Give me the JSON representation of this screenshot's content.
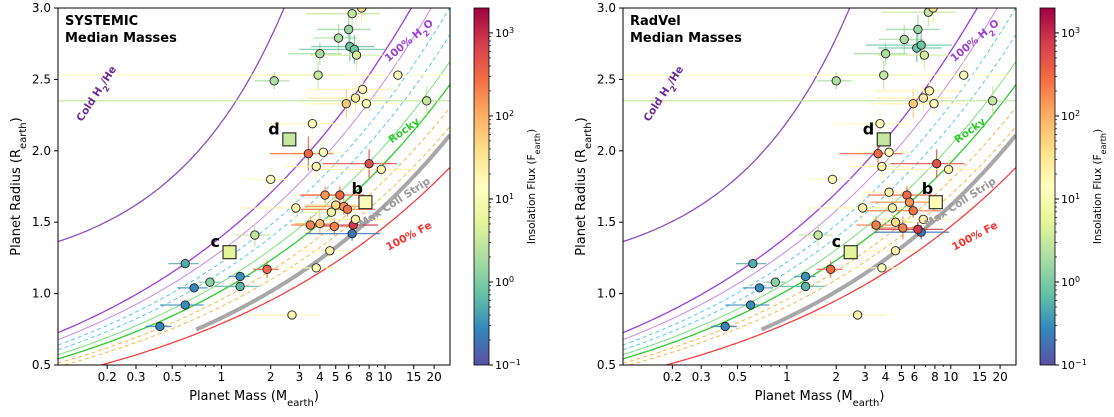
{
  "colorbar": {
    "label": "Insolation Flux (F",
    "label_sub": "earth",
    "label_end": ")",
    "tick_labels": [
      "10",
      "10",
      "10",
      "10",
      "10"
    ],
    "tick_exps": [
      "−1",
      "0",
      "1",
      "2",
      "3"
    ],
    "range_log": [
      -1,
      3.3
    ],
    "colormap": "Spectral_r"
  },
  "chart_data": [
    {
      "type": "scatter",
      "title_line1": "SYSTEMIC",
      "title_line2": "Median Masses",
      "xlabel": "Planet Mass (M",
      "xlabel_sub": "earth",
      "xlabel_end": ")",
      "ylabel": "Planet Radius (R",
      "ylabel_sub": "earth",
      "ylabel_end": ")",
      "xscale": "log",
      "xlim": [
        0.1,
        25
      ],
      "ylim": [
        0.5,
        3.0
      ],
      "x_ticks": [
        0.2,
        0.3,
        0.5,
        1,
        2,
        3,
        4,
        5,
        6,
        8,
        10,
        15,
        20
      ],
      "x_tick_labels": [
        "0.2",
        "0.3",
        "0.5",
        "1",
        "2",
        "3",
        "4",
        "5",
        "6",
        "8",
        "10",
        "15",
        "20"
      ],
      "y_ticks": [
        0.5,
        1.0,
        1.5,
        2.0,
        2.5,
        3.0
      ],
      "y_tick_labels": [
        "0.5",
        "1.0",
        "1.5",
        "2.0",
        "2.5",
        "3.0"
      ],
      "curve_labels": {
        "cold": "Cold H",
        "cold_sub": "2",
        "cold_end": "/He",
        "water": "100% H",
        "water_sub": "2",
        "water_end": "O",
        "rocky": "Rocky",
        "strip": "Max Coll Strip",
        "iron": "100% Fe"
      },
      "labeled_planets": [
        {
          "name": "b",
          "mass": 7.6,
          "radius": 1.64,
          "flux": 12
        },
        {
          "name": "c",
          "mass": 1.12,
          "radius": 1.29,
          "flux": 5
        },
        {
          "name": "d",
          "mass": 2.6,
          "radius": 2.08,
          "flux": 3
        }
      ],
      "points": [
        {
          "mass": 0.42,
          "radius": 0.77,
          "flux": 0.25,
          "xerr": 0.3,
          "yerr": 0.0
        },
        {
          "mass": 0.6,
          "radius": 0.92,
          "flux": 0.3,
          "xerr": 0.5,
          "yerr": 0.0
        },
        {
          "mass": 0.68,
          "radius": 1.04,
          "flux": 0.28,
          "xerr": 0.35,
          "yerr": 0.0
        },
        {
          "mass": 0.6,
          "radius": 1.21,
          "flux": 0.5,
          "xerr": 0.35,
          "yerr": 0.0
        },
        {
          "mass": 0.85,
          "radius": 1.08,
          "flux": 1.2,
          "xerr": 0.25,
          "yerr": 0.0
        },
        {
          "mass": 1.3,
          "radius": 1.12,
          "flux": 0.3,
          "xerr": 0.25,
          "yerr": 0.0
        },
        {
          "mass": 1.3,
          "radius": 1.05,
          "flux": 0.6,
          "xerr": 0.5,
          "yerr": 0.0
        },
        {
          "mass": 1.9,
          "radius": 1.17,
          "flux": 300,
          "xerr": 0.3,
          "yerr": 0.06
        },
        {
          "mass": 1.6,
          "radius": 1.41,
          "flux": 3,
          "xerr": 0.4,
          "yerr": 0.08
        },
        {
          "mass": 2.0,
          "radius": 1.8,
          "flux": 15,
          "xerr": 0.5,
          "yerr": 0.08
        },
        {
          "mass": 2.1,
          "radius": 2.49,
          "flux": 2,
          "xerr": 0.4,
          "yerr": 0.06
        },
        {
          "mass": 2.7,
          "radius": 0.85,
          "flux": 20,
          "xerr": 0.8,
          "yerr": 0.0
        },
        {
          "mass": 2.85,
          "radius": 1.6,
          "flux": 20,
          "xerr": 0.9,
          "yerr": 0.1
        },
        {
          "mass": 3.4,
          "radius": 1.98,
          "flux": 300,
          "xerr": 0.7,
          "yerr": 0.12
        },
        {
          "mass": 3.6,
          "radius": 2.19,
          "flux": 12,
          "xerr": 0.8,
          "yerr": 0.1
        },
        {
          "mass": 3.8,
          "radius": 1.89,
          "flux": 20,
          "xerr": 0.6,
          "yerr": 0.1
        },
        {
          "mass": 3.8,
          "radius": 1.18,
          "flux": 12,
          "xerr": 0.6,
          "yerr": 0.0
        },
        {
          "mass": 3.9,
          "radius": 2.53,
          "flux": 3,
          "xerr": 0.8,
          "yerr": 0.1
        },
        {
          "mass": 4.0,
          "radius": 2.68,
          "flux": 2,
          "xerr": 0.6,
          "yerr": 0.08
        },
        {
          "mass": 4.2,
          "radius": 1.99,
          "flux": 12,
          "xerr": 0.6,
          "yerr": 0.1
        },
        {
          "mass": 4.3,
          "radius": 1.69,
          "flux": 150,
          "xerr": 0.5,
          "yerr": 0.06
        },
        {
          "mass": 4.0,
          "radius": 1.49,
          "flux": 80,
          "xerr": 0.5,
          "yerr": 0.08
        },
        {
          "mass": 3.5,
          "radius": 1.48,
          "flux": 200,
          "xerr": 0.4,
          "yerr": 0.06
        },
        {
          "mass": 4.6,
          "radius": 1.3,
          "flux": 20,
          "xerr": 0.6,
          "yerr": 0.05
        },
        {
          "mass": 4.7,
          "radius": 1.57,
          "flux": 8,
          "xerr": 0.6,
          "yerr": 0.1
        },
        {
          "mass": 4.9,
          "radius": 1.47,
          "flux": 200,
          "xerr": 0.5,
          "yerr": 0.06
        },
        {
          "mass": 5.0,
          "radius": 1.62,
          "flux": 40,
          "xerr": 0.6,
          "yerr": 0.08
        },
        {
          "mass": 5.3,
          "radius": 1.69,
          "flux": 300,
          "xerr": 0.7,
          "yerr": 0.06
        },
        {
          "mass": 5.6,
          "radius": 1.61,
          "flux": 150,
          "xerr": 0.7,
          "yerr": 0.06
        },
        {
          "mass": 5.9,
          "radius": 1.59,
          "flux": 250,
          "xerr": 0.8,
          "yerr": 0.05
        },
        {
          "mass": 6.3,
          "radius": 1.42,
          "flux": 0.2,
          "xerr": 0.8,
          "yerr": 0.05
        },
        {
          "mass": 6.4,
          "radius": 1.48,
          "flux": 800,
          "xerr": 0.7,
          "yerr": 0.05
        },
        {
          "mass": 6.6,
          "radius": 1.52,
          "flux": 20,
          "xerr": 0.8,
          "yerr": 0.08
        },
        {
          "mass": 5.2,
          "radius": 2.79,
          "flux": 2,
          "xerr": 0.5,
          "yerr": 0.1
        },
        {
          "mass": 6.0,
          "radius": 2.85,
          "flux": 1.5,
          "xerr": 0.6,
          "yerr": 0.1
        },
        {
          "mass": 6.1,
          "radius": 2.73,
          "flux": 0.8,
          "xerr": 0.7,
          "yerr": 0.1
        },
        {
          "mass": 6.3,
          "radius": 2.96,
          "flux": 3,
          "xerr": 0.8,
          "yerr": 0.1
        },
        {
          "mass": 6.5,
          "radius": 2.71,
          "flux": 0.8,
          "xerr": 0.9,
          "yerr": 0.1
        },
        {
          "mass": 6.7,
          "radius": 2.67,
          "flux": 4,
          "xerr": 0.8,
          "yerr": 0.1
        },
        {
          "mass": 7.2,
          "radius": 3.0,
          "flux": 30,
          "xerr": 0.9,
          "yerr": 0.1
        },
        {
          "mass": 5.8,
          "radius": 2.33,
          "flux": 60,
          "xerr": 0.6,
          "yerr": 0.1
        },
        {
          "mass": 6.6,
          "radius": 2.37,
          "flux": 25,
          "xerr": 0.8,
          "yerr": 0.1
        },
        {
          "mass": 7.3,
          "radius": 2.43,
          "flux": 20,
          "xerr": 0.9,
          "yerr": 0.1
        },
        {
          "mass": 7.7,
          "radius": 2.33,
          "flux": 15,
          "xerr": 1.0,
          "yerr": 0.1
        },
        {
          "mass": 8.0,
          "radius": 1.91,
          "flux": 500,
          "xerr": 0.8,
          "yerr": 0.1
        },
        {
          "mass": 9.5,
          "radius": 1.87,
          "flux": 20,
          "xerr": 1.0,
          "yerr": 0.1
        },
        {
          "mass": 12.0,
          "radius": 2.53,
          "flux": 15,
          "xerr": 2.0,
          "yerr": 0.1
        },
        {
          "mass": 18.0,
          "radius": 2.35,
          "flux": 3,
          "xerr": 3.0,
          "yerr": 0.1
        }
      ]
    },
    {
      "type": "scatter",
      "title_line1": "RadVel",
      "title_line2": "Median Masses",
      "xlabel": "Planet Mass (M",
      "xlabel_sub": "earth",
      "xlabel_end": ")",
      "ylabel": "Planet Radius (R",
      "ylabel_sub": "earth",
      "ylabel_end": ")",
      "xscale": "log",
      "xlim": [
        0.1,
        25
      ],
      "ylim": [
        0.5,
        3.0
      ],
      "x_ticks": [
        0.2,
        0.3,
        0.5,
        1,
        2,
        3,
        4,
        5,
        6,
        8,
        10,
        15,
        20
      ],
      "x_tick_labels": [
        "0.2",
        "0.3",
        "0.5",
        "1",
        "2",
        "3",
        "4",
        "5",
        "6",
        "8",
        "10",
        "15",
        "20"
      ],
      "y_ticks": [
        0.5,
        1.0,
        1.5,
        2.0,
        2.5,
        3.0
      ],
      "y_tick_labels": [
        "0.5",
        "1.0",
        "1.5",
        "2.0",
        "2.5",
        "3.0"
      ],
      "curve_labels": {
        "cold": "Cold H",
        "cold_sub": "2",
        "cold_end": "/He",
        "water": "100% H",
        "water_sub": "2",
        "water_end": "O",
        "rocky": "Rocky",
        "strip": "Max Coll Strip",
        "iron": "100% Fe"
      },
      "labeled_planets": [
        {
          "name": "b",
          "mass": 8.1,
          "radius": 1.64,
          "flux": 12
        },
        {
          "name": "c",
          "mass": 2.45,
          "radius": 1.29,
          "flux": 5
        },
        {
          "name": "d",
          "mass": 3.9,
          "radius": 2.08,
          "flux": 3
        }
      ],
      "points": [
        {
          "mass": 0.42,
          "radius": 0.77,
          "flux": 0.25,
          "xerr": 0.3,
          "yerr": 0.0
        },
        {
          "mass": 0.6,
          "radius": 0.92,
          "flux": 0.3,
          "xerr": 0.5,
          "yerr": 0.0
        },
        {
          "mass": 0.68,
          "radius": 1.04,
          "flux": 0.28,
          "xerr": 0.35,
          "yerr": 0.0
        },
        {
          "mass": 0.62,
          "radius": 1.21,
          "flux": 0.5,
          "xerr": 0.35,
          "yerr": 0.0
        },
        {
          "mass": 0.85,
          "radius": 1.08,
          "flux": 1.2,
          "xerr": 0.25,
          "yerr": 0.0
        },
        {
          "mass": 1.3,
          "radius": 1.12,
          "flux": 0.3,
          "xerr": 0.25,
          "yerr": 0.0
        },
        {
          "mass": 1.3,
          "radius": 1.05,
          "flux": 0.6,
          "xerr": 0.5,
          "yerr": 0.0
        },
        {
          "mass": 1.85,
          "radius": 1.17,
          "flux": 300,
          "xerr": 0.3,
          "yerr": 0.06
        },
        {
          "mass": 1.55,
          "radius": 1.41,
          "flux": 3,
          "xerr": 0.4,
          "yerr": 0.08
        },
        {
          "mass": 1.9,
          "radius": 1.8,
          "flux": 15,
          "xerr": 0.5,
          "yerr": 0.08
        },
        {
          "mass": 2.0,
          "radius": 2.49,
          "flux": 2,
          "xerr": 0.4,
          "yerr": 0.06
        },
        {
          "mass": 2.7,
          "radius": 0.85,
          "flux": 20,
          "xerr": 0.8,
          "yerr": 0.0
        },
        {
          "mass": 2.9,
          "radius": 1.6,
          "flux": 20,
          "xerr": 0.9,
          "yerr": 0.1
        },
        {
          "mass": 3.6,
          "radius": 1.98,
          "flux": 300,
          "xerr": 0.7,
          "yerr": 0.12
        },
        {
          "mass": 3.7,
          "radius": 2.19,
          "flux": 12,
          "xerr": 0.8,
          "yerr": 0.1
        },
        {
          "mass": 3.8,
          "radius": 1.89,
          "flux": 20,
          "xerr": 0.6,
          "yerr": 0.1
        },
        {
          "mass": 3.8,
          "radius": 1.18,
          "flux": 12,
          "xerr": 0.6,
          "yerr": 0.0
        },
        {
          "mass": 3.9,
          "radius": 2.53,
          "flux": 3,
          "xerr": 0.8,
          "yerr": 0.1
        },
        {
          "mass": 4.0,
          "radius": 2.68,
          "flux": 2,
          "xerr": 0.6,
          "yerr": 0.08
        },
        {
          "mass": 4.2,
          "radius": 1.99,
          "flux": 12,
          "xerr": 0.6,
          "yerr": 0.1
        },
        {
          "mass": 4.2,
          "radius": 1.71,
          "flux": 20,
          "xerr": 0.5,
          "yerr": 0.06
        },
        {
          "mass": 3.5,
          "radius": 1.48,
          "flux": 200,
          "xerr": 0.4,
          "yerr": 0.06
        },
        {
          "mass": 4.6,
          "radius": 1.3,
          "flux": 20,
          "xerr": 0.6,
          "yerr": 0.05
        },
        {
          "mass": 4.4,
          "radius": 1.6,
          "flux": 8,
          "xerr": 0.6,
          "yerr": 0.1
        },
        {
          "mass": 4.6,
          "radius": 1.5,
          "flux": 40,
          "xerr": 0.5,
          "yerr": 0.06
        },
        {
          "mass": 5.1,
          "radius": 1.46,
          "flux": 200,
          "xerr": 0.6,
          "yerr": 0.08
        },
        {
          "mass": 5.4,
          "radius": 1.69,
          "flux": 300,
          "xerr": 0.7,
          "yerr": 0.06
        },
        {
          "mass": 5.6,
          "radius": 1.64,
          "flux": 150,
          "xerr": 0.7,
          "yerr": 0.06
        },
        {
          "mass": 5.9,
          "radius": 1.58,
          "flux": 250,
          "xerr": 0.8,
          "yerr": 0.05
        },
        {
          "mass": 6.6,
          "radius": 1.43,
          "flux": 0.2,
          "xerr": 0.8,
          "yerr": 0.05
        },
        {
          "mass": 6.3,
          "radius": 1.45,
          "flux": 800,
          "xerr": 0.7,
          "yerr": 0.05
        },
        {
          "mass": 6.8,
          "radius": 1.52,
          "flux": 20,
          "xerr": 0.8,
          "yerr": 0.08
        },
        {
          "mass": 5.2,
          "radius": 2.78,
          "flux": 2,
          "xerr": 0.5,
          "yerr": 0.1
        },
        {
          "mass": 6.3,
          "radius": 2.85,
          "flux": 1.5,
          "xerr": 0.6,
          "yerr": 0.1
        },
        {
          "mass": 6.2,
          "radius": 2.72,
          "flux": 0.8,
          "xerr": 0.7,
          "yerr": 0.1
        },
        {
          "mass": 7.3,
          "radius": 2.97,
          "flux": 3,
          "xerr": 0.8,
          "yerr": 0.1
        },
        {
          "mass": 6.6,
          "radius": 2.74,
          "flux": 0.8,
          "xerr": 0.9,
          "yerr": 0.1
        },
        {
          "mass": 6.9,
          "radius": 2.67,
          "flux": 4,
          "xerr": 0.8,
          "yerr": 0.1
        },
        {
          "mass": 7.8,
          "radius": 3.0,
          "flux": 30,
          "xerr": 0.9,
          "yerr": 0.1
        },
        {
          "mass": 5.9,
          "radius": 2.33,
          "flux": 60,
          "xerr": 0.6,
          "yerr": 0.1
        },
        {
          "mass": 6.8,
          "radius": 2.37,
          "flux": 25,
          "xerr": 0.8,
          "yerr": 0.1
        },
        {
          "mass": 7.4,
          "radius": 2.42,
          "flux": 20,
          "xerr": 0.9,
          "yerr": 0.1
        },
        {
          "mass": 7.9,
          "radius": 2.33,
          "flux": 15,
          "xerr": 1.0,
          "yerr": 0.1
        },
        {
          "mass": 8.2,
          "radius": 1.91,
          "flux": 500,
          "xerr": 0.8,
          "yerr": 0.1
        },
        {
          "mass": 9.7,
          "radius": 1.87,
          "flux": 20,
          "xerr": 1.0,
          "yerr": 0.1
        },
        {
          "mass": 12.0,
          "radius": 2.53,
          "flux": 15,
          "xerr": 2.0,
          "yerr": 0.1
        },
        {
          "mass": 18.0,
          "radius": 2.35,
          "flux": 3,
          "xerr": 3.0,
          "yerr": 0.1
        }
      ]
    }
  ]
}
